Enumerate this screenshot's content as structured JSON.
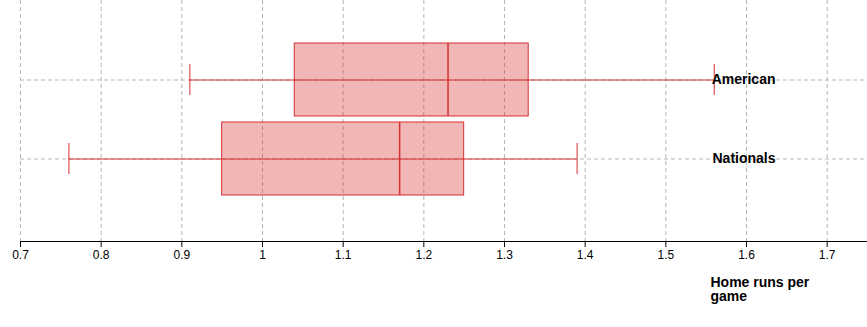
{
  "chart_data": {
    "type": "boxplot",
    "orientation": "horizontal",
    "categories": [
      "American",
      "Nationals"
    ],
    "min": [
      0.91,
      0.76
    ],
    "q1": [
      1.04,
      0.95
    ],
    "median": [
      1.23,
      1.17
    ],
    "q3": [
      1.33,
      1.25
    ],
    "max": [
      1.56,
      1.39
    ],
    "color": "#d62f2f",
    "x_label": "Home runs per game",
    "xlim": [
      0.7,
      1.75
    ],
    "xticks": [
      0.7,
      0.8,
      0.9,
      1,
      1.1,
      1.2,
      1.3,
      1.4,
      1.5,
      1.6,
      1.7
    ],
    "grid": true
  }
}
